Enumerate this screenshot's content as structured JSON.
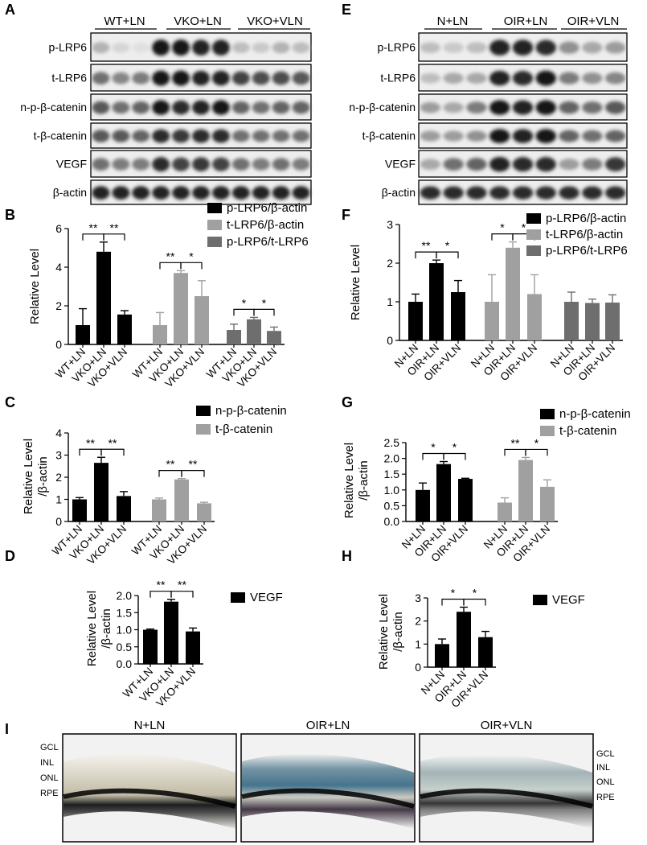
{
  "panel_letters": [
    "A",
    "B",
    "C",
    "D",
    "E",
    "F",
    "G",
    "H",
    "I"
  ],
  "blot_left": {
    "groups": [
      "WT+LN",
      "VKO+LN",
      "VKO+VLN"
    ],
    "rows": [
      "p-LRP6",
      "t-LRP6",
      "n-p-β-catenin",
      "t-β-catenin",
      "VEGF",
      "β-actin"
    ]
  },
  "blot_right": {
    "groups": [
      "N+LN",
      "OIR+LN",
      "OIR+VLN"
    ],
    "rows": [
      "p-LRP6",
      "t-LRP6",
      "n-p-β-catenin",
      "t-β-catenin",
      "VEGF",
      "β-actin"
    ]
  },
  "chart_data": [
    {
      "id": "B",
      "type": "bar",
      "ylabel": "Relative Level",
      "ylim": [
        0,
        6
      ],
      "yticks": [
        "0",
        "2",
        "4",
        "6"
      ],
      "groups": [
        {
          "categories": [
            "WT+LN",
            "VKO+LN",
            "VKO+VLN"
          ],
          "series": "p-LRP6/β-actin",
          "values": [
            1.0,
            4.8,
            1.55
          ],
          "errors": [
            0.85,
            0.5,
            0.2
          ],
          "sig": [
            "**",
            "**"
          ]
        },
        {
          "categories": [
            "WT+LN",
            "VKO+LN",
            "VKO+VLN"
          ],
          "series": "t-LRP6/β-actin",
          "values": [
            1.0,
            3.7,
            2.5
          ],
          "errors": [
            0.65,
            0.12,
            0.8
          ],
          "sig": [
            "**",
            "*"
          ]
        },
        {
          "categories": [
            "WT+LN",
            "VKO+LN",
            "VKO+VLN"
          ],
          "series": "p-LRP6/t-LRP6",
          "values": [
            0.75,
            1.3,
            0.7
          ],
          "errors": [
            0.3,
            0.1,
            0.2
          ],
          "sig": [
            "*",
            "*"
          ]
        }
      ],
      "legend": [
        "p-LRP6/β-actin",
        "t-LRP6/β-actin",
        "p-LRP6/t-LRP6"
      ]
    },
    {
      "id": "C",
      "type": "bar",
      "ylabel": "Relative Level /β-actin",
      "ylim": [
        0,
        4
      ],
      "yticks": [
        "0",
        "1",
        "2",
        "3",
        "4"
      ],
      "groups": [
        {
          "categories": [
            "WT+LN",
            "VKO+LN",
            "VKO+VLN"
          ],
          "series": "n-p-β-catenin",
          "values": [
            1.0,
            2.65,
            1.15
          ],
          "errors": [
            0.08,
            0.25,
            0.2
          ],
          "sig": [
            "**",
            "**"
          ]
        },
        {
          "categories": [
            "WT+LN",
            "VKO+LN",
            "VKO+VLN"
          ],
          "series": "t-β-catenin",
          "values": [
            1.0,
            1.9,
            0.82
          ],
          "errors": [
            0.06,
            0.04,
            0.05
          ],
          "sig": [
            "**",
            "**"
          ]
        }
      ],
      "legend": [
        "n-p-β-catenin",
        "t-β-catenin"
      ]
    },
    {
      "id": "D",
      "type": "bar",
      "ylabel": "Relative Level /β-actin",
      "ylim": [
        0,
        2.0
      ],
      "yticks": [
        "0.0",
        "0.5",
        "1.0",
        "1.5",
        "2.0"
      ],
      "groups": [
        {
          "categories": [
            "WT+LN",
            "VKO+LN",
            "VKO+VLN"
          ],
          "series": "VEGF",
          "values": [
            1.0,
            1.82,
            0.95
          ],
          "errors": [
            0.02,
            0.07,
            0.1
          ],
          "sig": [
            "**",
            "**"
          ]
        }
      ],
      "legend": [
        "VEGF"
      ]
    },
    {
      "id": "F",
      "type": "bar",
      "ylabel": "Relative Level",
      "ylim": [
        0,
        3
      ],
      "yticks": [
        "0",
        "1",
        "2",
        "3"
      ],
      "groups": [
        {
          "categories": [
            "N+LN",
            "OIR+LN",
            "OIR+VLN"
          ],
          "series": "p-LRP6/β-actin",
          "values": [
            1.0,
            2.0,
            1.25
          ],
          "errors": [
            0.2,
            0.08,
            0.3
          ],
          "sig": [
            "**",
            "*"
          ]
        },
        {
          "categories": [
            "N+LN",
            "OIR+LN",
            "OIR+VLN"
          ],
          "series": "t-LRP6/β-actin",
          "values": [
            1.0,
            2.4,
            1.2
          ],
          "errors": [
            0.7,
            0.15,
            0.5
          ],
          "sig": [
            "*",
            "*"
          ]
        },
        {
          "categories": [
            "N+LN",
            "OIR+LN",
            "OIR+VLN"
          ],
          "series": "p-LRP6/t-LRP6",
          "values": [
            1.0,
            0.97,
            0.98
          ],
          "errors": [
            0.25,
            0.1,
            0.2
          ],
          "sig": []
        }
      ],
      "legend": [
        "p-LRP6/β-actin",
        "t-LRP6/β-actin",
        "p-LRP6/t-LRP6"
      ]
    },
    {
      "id": "G",
      "type": "bar",
      "ylabel": "Relative Level /β-actin",
      "ylim": [
        0,
        2.5
      ],
      "yticks": [
        "0.0",
        "0.5",
        "1.0",
        "1.5",
        "2.0",
        "2.5"
      ],
      "groups": [
        {
          "categories": [
            "N+LN",
            "OIR+LN",
            "OIR+VLN"
          ],
          "series": "n-p-β-catenin",
          "values": [
            1.0,
            1.82,
            1.35
          ],
          "errors": [
            0.22,
            0.08,
            0.02
          ],
          "sig": [
            "*",
            "*"
          ]
        },
        {
          "categories": [
            "N+LN",
            "OIR+LN",
            "OIR+VLN"
          ],
          "series": "t-β-catenin",
          "values": [
            0.6,
            1.95,
            1.1
          ],
          "errors": [
            0.15,
            0.08,
            0.22
          ],
          "sig": [
            "**",
            "*"
          ]
        }
      ],
      "legend": [
        "n-p-β-catenin",
        "t-β-catenin"
      ]
    },
    {
      "id": "H",
      "type": "bar",
      "ylabel": "Relative Level /β-actin",
      "ylim": [
        0,
        3
      ],
      "yticks": [
        "0",
        "1",
        "2",
        "3"
      ],
      "groups": [
        {
          "categories": [
            "N+LN",
            "OIR+LN",
            "OIR+VLN"
          ],
          "series": "VEGF",
          "values": [
            1.0,
            2.4,
            1.3
          ],
          "errors": [
            0.22,
            0.2,
            0.25
          ],
          "sig": [
            "*",
            "*"
          ]
        }
      ],
      "legend": [
        "VEGF"
      ]
    }
  ],
  "histology": {
    "titles": [
      "N+LN",
      "OIR+LN",
      "OIR+VLN"
    ],
    "layers": [
      "GCL",
      "INL",
      "ONL",
      "RPE"
    ]
  },
  "colors": {
    "black": "#000000",
    "light_gray": "#a0a0a0",
    "mid_gray": "#6e6e6e"
  }
}
